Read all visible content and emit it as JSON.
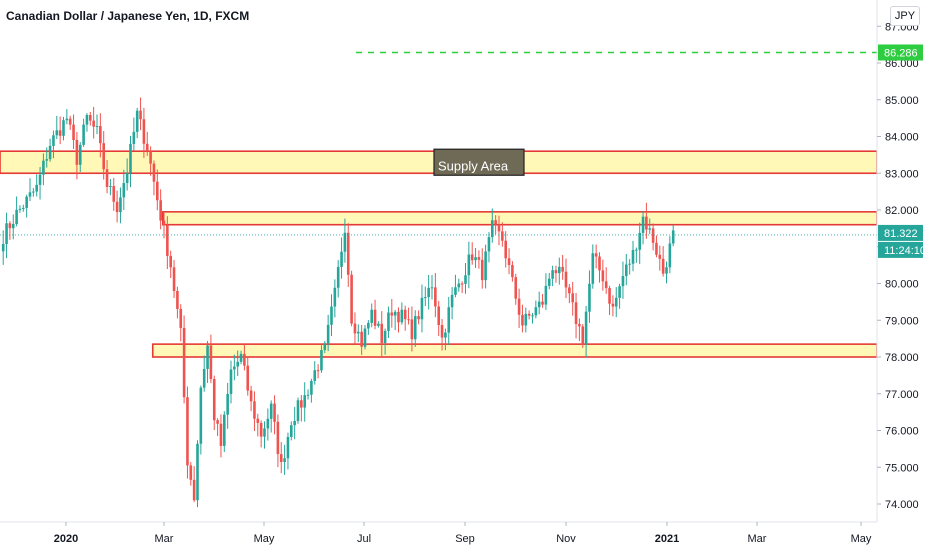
{
  "header": {
    "title": "Canadian Dollar / Japanese Yen, 1D, FXCM",
    "currency": "JPY"
  },
  "colors": {
    "up": "#26a69a",
    "down": "#ef5350",
    "zone_fill": "#fff59d",
    "zone_border": "#e53935",
    "target": "#2ecc40",
    "label_bg": "#6e6a55"
  },
  "chart_data": {
    "type": "candlestick",
    "title": "Canadian Dollar / Japanese Yen, 1D, FXCM",
    "ylim": [
      73.7,
      87.3
    ],
    "yticks": [
      "74.000",
      "75.000",
      "76.000",
      "77.000",
      "78.000",
      "79.000",
      "80.000",
      "81.000",
      "82.000",
      "83.000",
      "84.000",
      "85.000",
      "86.000",
      "87.000"
    ],
    "xticks": [
      {
        "label": "2020",
        "bold": true
      },
      {
        "label": "Mar"
      },
      {
        "label": "May"
      },
      {
        "label": "Jul"
      },
      {
        "label": "Sep"
      },
      {
        "label": "Nov"
      },
      {
        "label": "2021",
        "bold": true
      },
      {
        "label": "Mar"
      },
      {
        "label": "May"
      }
    ],
    "path": [
      [
        0,
        81.3
      ],
      [
        4,
        81.9
      ],
      [
        10,
        82.6
      ],
      [
        14,
        83.8
      ],
      [
        19,
        84.5
      ],
      [
        22,
        83.4
      ],
      [
        25,
        84.5
      ],
      [
        28,
        84.1
      ],
      [
        31,
        82.7
      ],
      [
        34,
        82.1
      ],
      [
        37,
        83.1
      ],
      [
        40,
        84.6
      ],
      [
        43,
        83.7
      ],
      [
        46,
        82.3
      ],
      [
        50,
        80.5
      ],
      [
        53,
        78.6
      ],
      [
        55,
        75.2
      ],
      [
        57,
        74.2
      ],
      [
        59,
        77.2
      ],
      [
        61,
        78.3
      ],
      [
        63,
        76.4
      ],
      [
        65,
        75.6
      ],
      [
        68,
        77.6
      ],
      [
        71,
        78.0
      ],
      [
        74,
        76.7
      ],
      [
        77,
        75.9
      ],
      [
        80,
        76.6
      ],
      [
        83,
        75.0
      ],
      [
        86,
        76.3
      ],
      [
        90,
        76.9
      ],
      [
        93,
        77.6
      ],
      [
        96,
        78.2
      ],
      [
        99,
        79.7
      ],
      [
        102,
        81.6
      ],
      [
        104,
        79.1
      ],
      [
        107,
        78.4
      ],
      [
        110,
        79.2
      ],
      [
        113,
        78.5
      ],
      [
        116,
        79.3
      ],
      [
        119,
        79.1
      ],
      [
        122,
        78.7
      ],
      [
        125,
        79.4
      ],
      [
        128,
        80.0
      ],
      [
        131,
        78.5
      ],
      [
        134,
        79.6
      ],
      [
        137,
        80.2
      ],
      [
        140,
        80.8
      ],
      [
        143,
        80.3
      ],
      [
        146,
        81.5
      ],
      [
        149,
        81.2
      ],
      [
        152,
        80.0
      ],
      [
        155,
        78.9
      ],
      [
        158,
        79.2
      ],
      [
        161,
        79.5
      ],
      [
        164,
        80.5
      ],
      [
        167,
        80.1
      ],
      [
        170,
        79.3
      ],
      [
        173,
        78.5
      ],
      [
        176,
        80.7
      ],
      [
        179,
        80.2
      ],
      [
        182,
        79.3
      ],
      [
        185,
        80.2
      ],
      [
        188,
        80.8
      ],
      [
        191,
        81.8
      ],
      [
        194,
        81.2
      ],
      [
        197,
        80.3
      ],
      [
        200,
        81.3
      ]
    ],
    "noise_seed": 7,
    "current_price": "81.322",
    "countdown": "11:24:10",
    "target_price": "86.286",
    "zones": [
      {
        "name": "supply",
        "label": "Supply Area",
        "ymin": 83.0,
        "ymax": 83.6,
        "start_bar": 0
      },
      {
        "name": "resistance",
        "label": "",
        "ymin": 81.6,
        "ymax": 81.95,
        "start_bar": 48
      },
      {
        "name": "support",
        "label": "",
        "ymin": 78.0,
        "ymax": 78.35,
        "start_bar": 45
      }
    ]
  }
}
